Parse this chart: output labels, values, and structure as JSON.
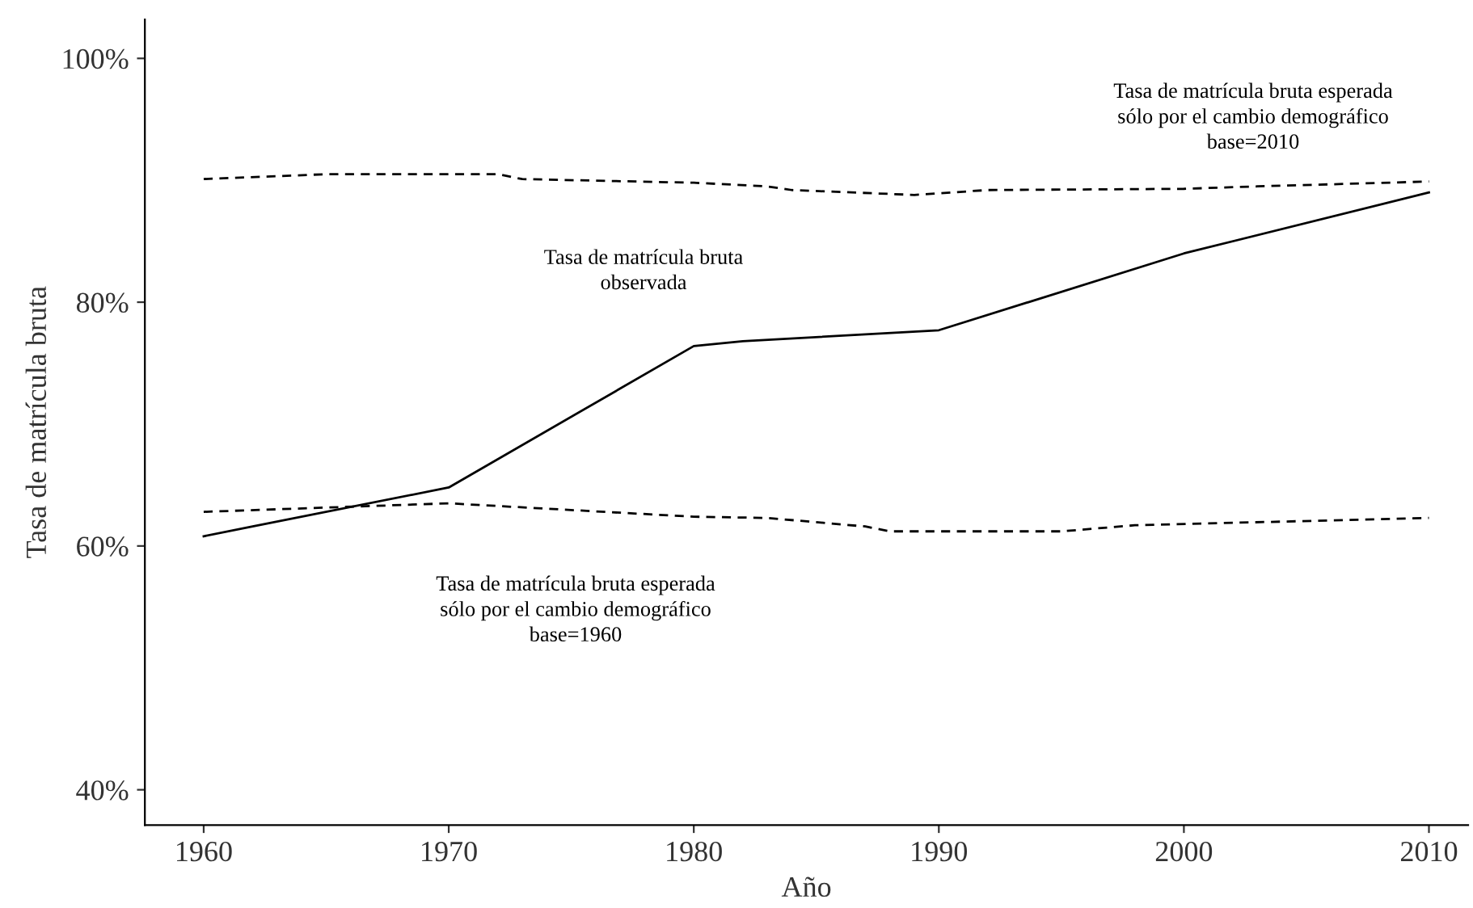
{
  "chart_data": {
    "type": "line",
    "xlabel": "Año",
    "ylabel": "Tasa de matrícula bruta",
    "xlim": [
      1957.6,
      2011.6
    ],
    "xticks": [
      1960,
      1970,
      1980,
      1990,
      2000,
      2010
    ],
    "ylim": [
      37.1,
      103.2
    ],
    "yticks": [
      {
        "value": 40,
        "label": "40%"
      },
      {
        "value": 60,
        "label": "60%"
      },
      {
        "value": 80,
        "label": "80%"
      },
      {
        "value": 100,
        "label": "100%"
      }
    ],
    "grid": false,
    "legend": false,
    "marker": "none",
    "series": [
      {
        "color": "#000000",
        "line_style": "solid",
        "x": [
          1960,
          1962,
          1970,
          1980,
          1982,
          1990,
          2000,
          2010
        ],
        "values": [
          60.8,
          61.6,
          64.8,
          76.4,
          76.8,
          77.7,
          84.0,
          89.0
        ]
      },
      {
        "color": "#000000",
        "line_style": "dashed",
        "x": [
          1960,
          1965,
          1972,
          1973,
          1980,
          1983,
          1984,
          1989,
          1992,
          2000,
          2003,
          2010
        ],
        "values": [
          90.1,
          90.5,
          90.5,
          90.1,
          89.8,
          89.5,
          89.2,
          88.8,
          89.2,
          89.3,
          89.5,
          89.9
        ]
      },
      {
        "color": "#000000",
        "line_style": "dashed",
        "x": [
          1960,
          1970,
          1980,
          1983,
          1987,
          1988,
          1995,
          1998,
          2010
        ],
        "values": [
          62.8,
          63.5,
          62.4,
          62.3,
          61.6,
          61.2,
          61.2,
          61.7,
          62.3
        ]
      }
    ],
    "annotations": [
      "Tasa de matrícula bruta\nobservada",
      "Tasa de matrícula bruta esperada\nsólo por el cambio demográfico\nbase=2010",
      "Tasa de matrícula bruta esperada\nsólo por el cambio demográfico\nbase=1960"
    ]
  }
}
